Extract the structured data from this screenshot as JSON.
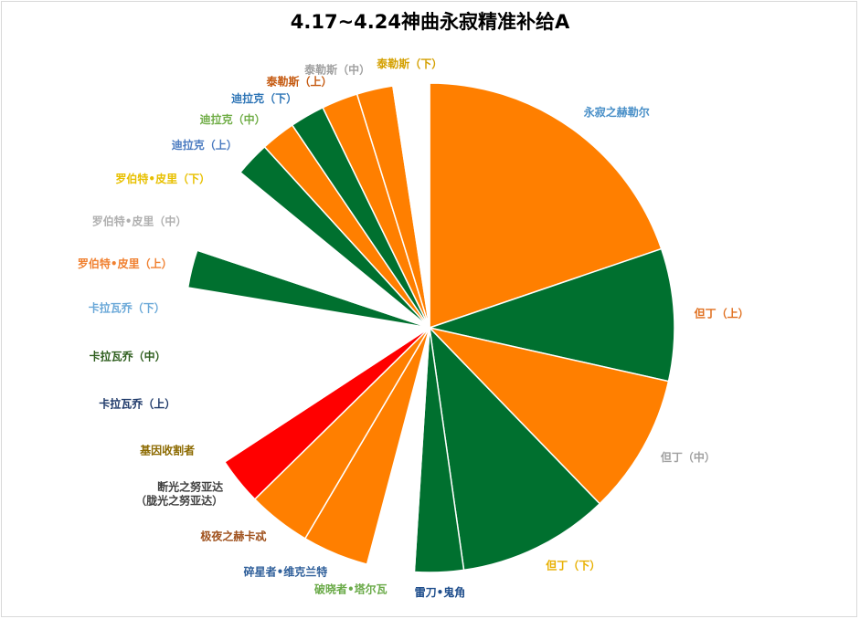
{
  "chart_data": {
    "type": "pie",
    "title": "4.17~4.24神曲永寂精准补给A",
    "start_angle_deg": 0,
    "direction": "clockwise",
    "labels_position": "outside",
    "slices": [
      {
        "label": "永寂之赫勒尔",
        "value": 19.0,
        "color": "#FF7F00",
        "label_color": "#4A90C8"
      },
      {
        "label": "但丁（上）",
        "value": 8.4,
        "color": "#00702F",
        "label_color": "#E07020"
      },
      {
        "label": "但丁（中）",
        "value": 8.9,
        "color": "#FF7F00",
        "label_color": "#A0A0A0"
      },
      {
        "label": "但丁（下）",
        "value": 9.6,
        "color": "#00702F",
        "label_color": "#E8B000"
      },
      {
        "label": "雷刀•鬼角",
        "value": 3.1,
        "color": "#00702F",
        "label_color": "#1F4E8C"
      },
      {
        "label": "破晓者•塔尔瓦",
        "value": 3.0,
        "color": "#FFFFFF",
        "label_color": "#6AAA48"
      },
      {
        "label": "碎星者•维克兰特",
        "value": 4.2,
        "color": "#FF7F00",
        "label_color": "#2F5F9A"
      },
      {
        "label": "极夜之赫卡忒",
        "value": 4.0,
        "color": "#FF7F00",
        "label_color": "#A0521E"
      },
      {
        "label": "断光之努亚达\n（胧光之努亚达）",
        "value": 3.0,
        "color": "#FF0000",
        "label_color": "#404040"
      },
      {
        "label": "基因收割者",
        "value": 3.0,
        "color": "#FFFFFF",
        "label_color": "#8C6A00"
      },
      {
        "label": "卡拉瓦乔（上）",
        "value": 2.8,
        "color": "#FFFFFF",
        "label_color": "#1F3A6A"
      },
      {
        "label": "卡拉瓦乔（中）",
        "value": 2.8,
        "color": "#FFFFFF",
        "label_color": "#2E5E1E"
      },
      {
        "label": "卡拉瓦乔（下）",
        "value": 2.8,
        "color": "#FFFFFF",
        "label_color": "#6AA8D8"
      },
      {
        "label": "罗伯特•皮里（上）",
        "value": 2.4,
        "color": "#00702F",
        "label_color": "#F08030"
      },
      {
        "label": "罗伯特•皮里（中）",
        "value": 2.8,
        "color": "#FFFFFF",
        "label_color": "#B0B0B0"
      },
      {
        "label": "罗伯特•皮里（下）",
        "value": 2.8,
        "color": "#FFFFFF",
        "label_color": "#E8C000"
      },
      {
        "label": "迪拉克（上）",
        "value": 2.2,
        "color": "#00702F",
        "label_color": "#4A7AC0"
      },
      {
        "label": "迪拉克（中）",
        "value": 2.2,
        "color": "#FF7F00",
        "label_color": "#70AD47"
      },
      {
        "label": "迪拉克（下）",
        "value": 2.2,
        "color": "#00702F",
        "label_color": "#2E75B6"
      },
      {
        "label": "泰勒斯（上）",
        "value": 2.3,
        "color": "#FF7F00",
        "label_color": "#C55A11"
      },
      {
        "label": "泰勒斯（中）",
        "value": 2.3,
        "color": "#FF7F00",
        "label_color": "#A0A0A0"
      },
      {
        "label": "泰勒斯（下）",
        "value": 2.3,
        "color": "#FFFFFF",
        "label_color": "#D4A000"
      }
    ]
  }
}
